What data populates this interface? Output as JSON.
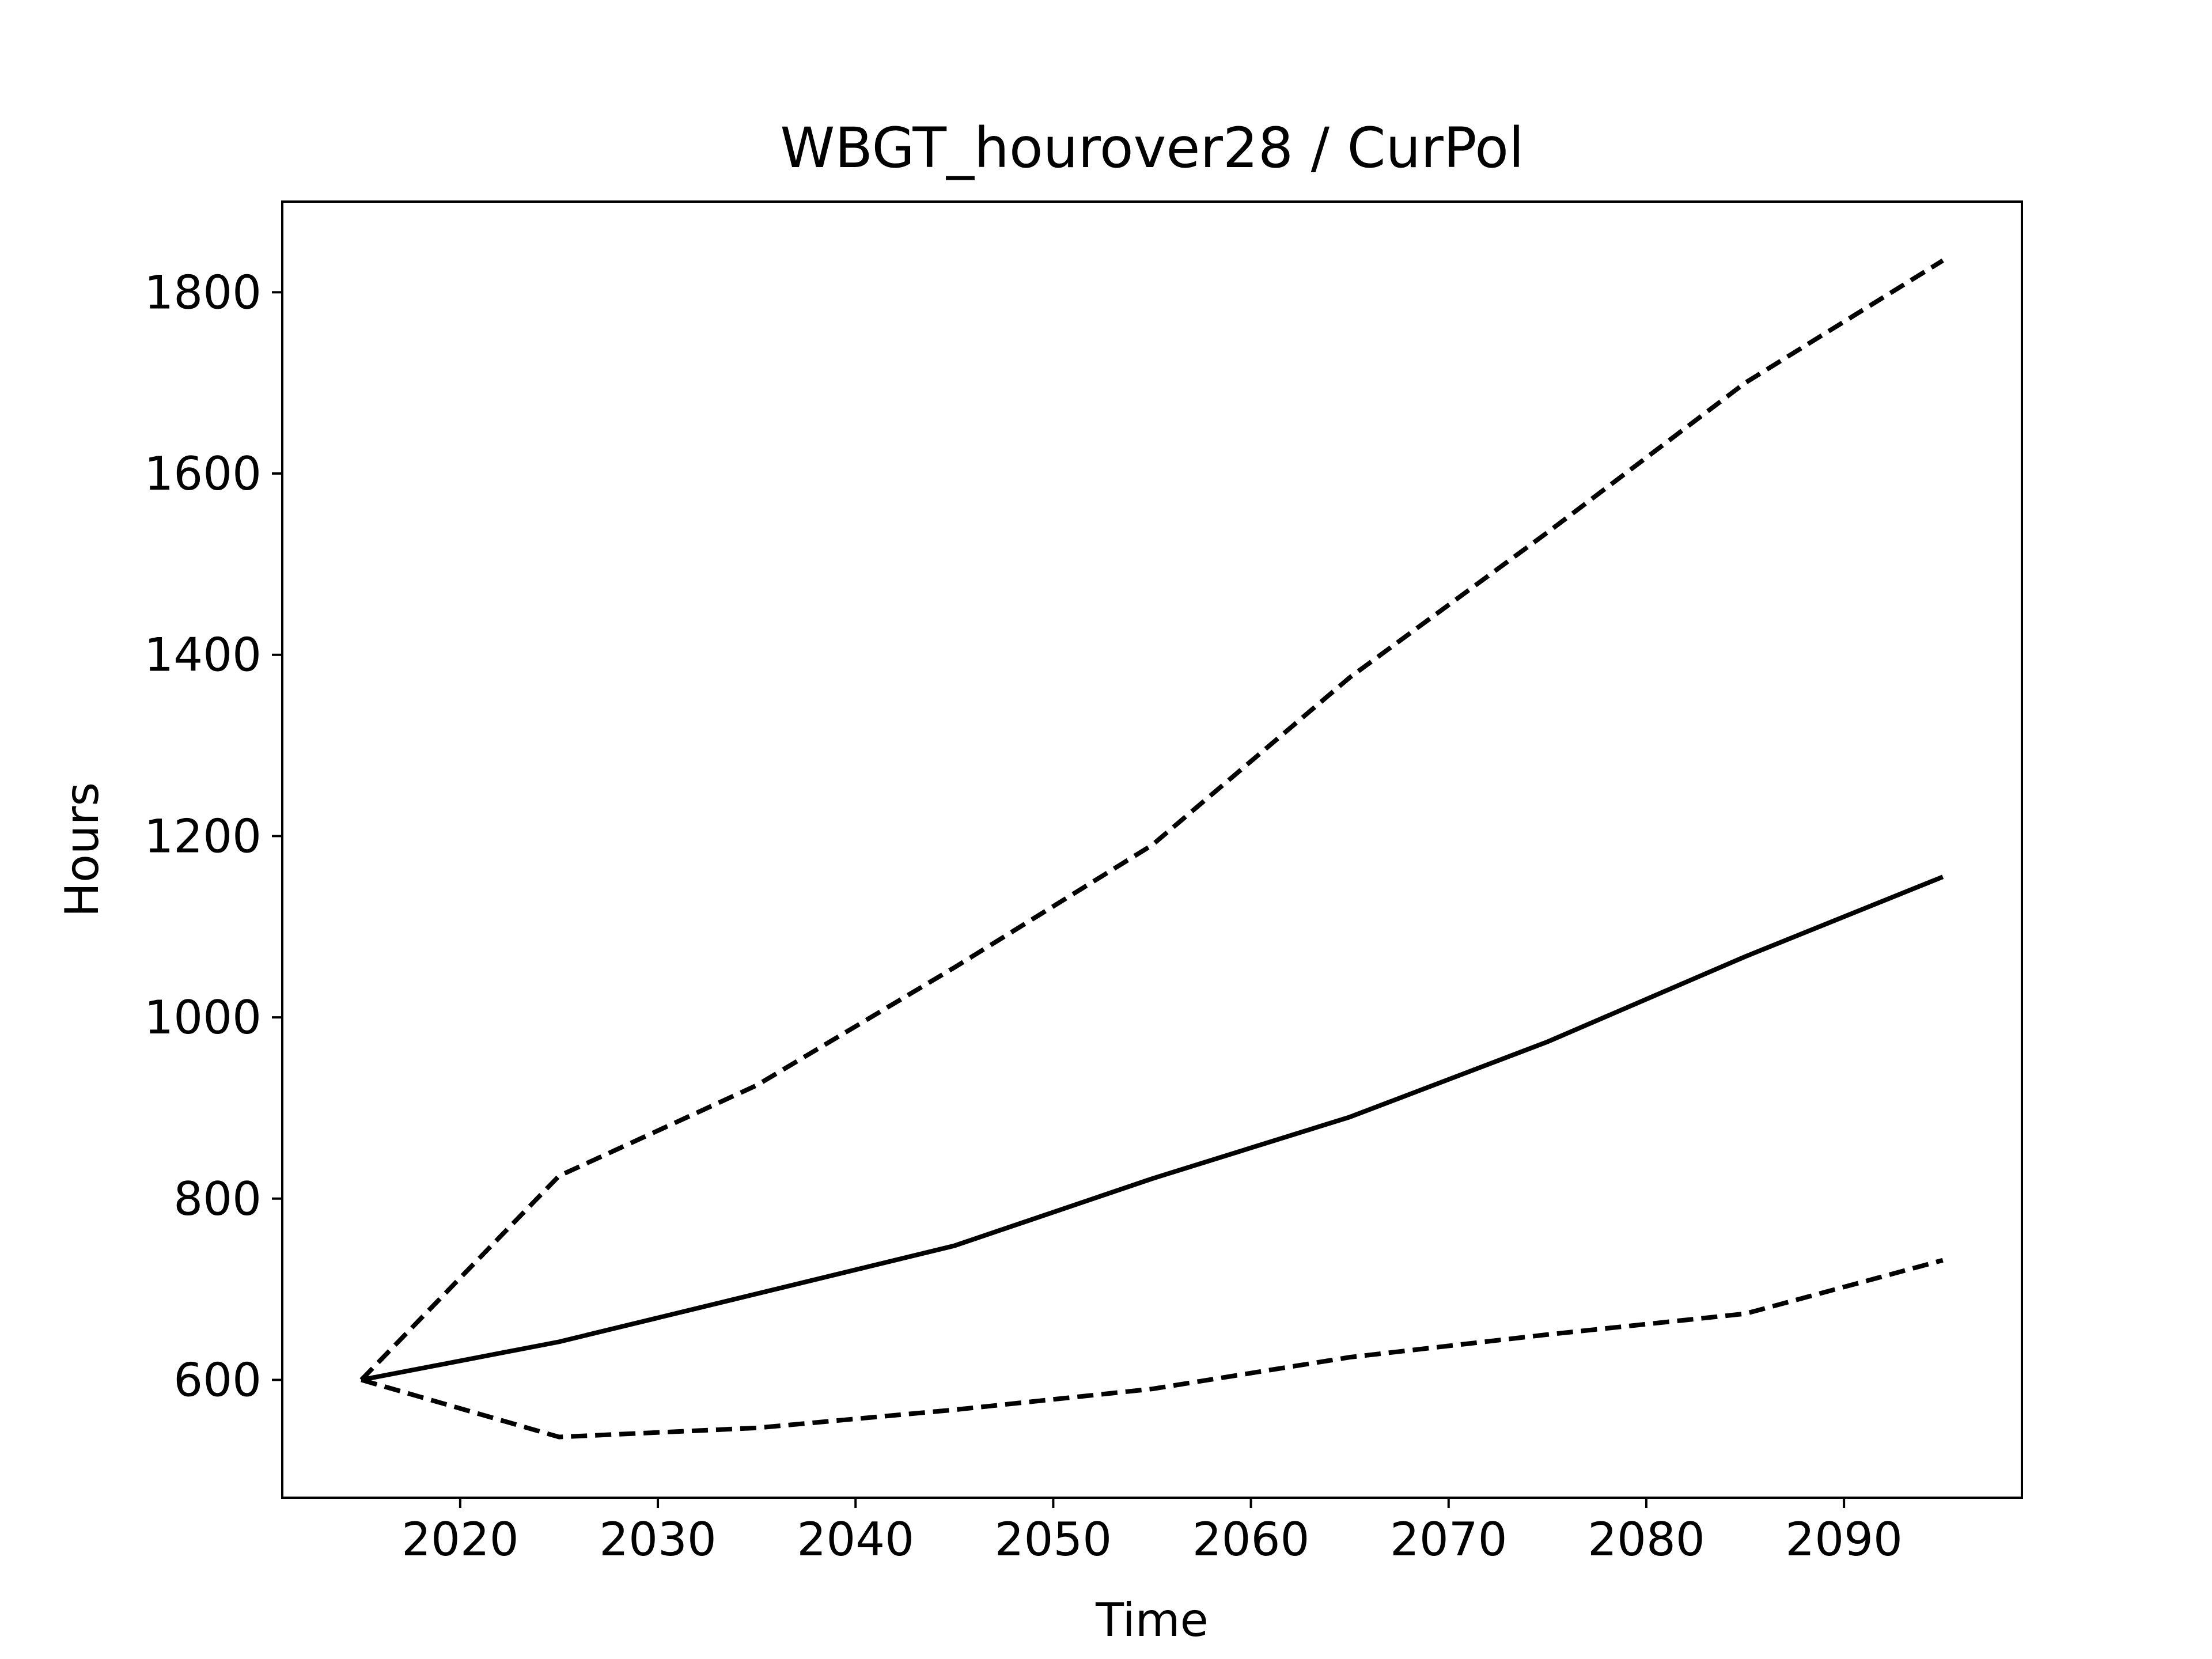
{
  "chart_data": {
    "type": "line",
    "title": "WBGT_hourover28 / CurPol",
    "xlabel": "Time",
    "ylabel": "Hours",
    "xlim": [
      2011,
      2099
    ],
    "ylim": [
      470,
      1900
    ],
    "x_ticks": [
      2020,
      2030,
      2040,
      2050,
      2060,
      2070,
      2080,
      2090
    ],
    "y_ticks": [
      600,
      800,
      1000,
      1200,
      1400,
      1600,
      1800
    ],
    "x_tick_labels": [
      "2020",
      "2030",
      "2040",
      "2050",
      "2060",
      "2070",
      "2080",
      "2090"
    ],
    "y_tick_labels": [
      "600",
      "800",
      "1000",
      "1200",
      "1400",
      "1600",
      "1800"
    ],
    "grid": false,
    "legend": false,
    "x": [
      2015,
      2025,
      2035,
      2045,
      2055,
      2065,
      2075,
      2085,
      2095
    ],
    "series": [
      {
        "style": "dashed",
        "color": "#000000",
        "values": [
          600,
          825,
          925,
          1055,
          1190,
          1375,
          1535,
          1700,
          1835
        ]
      },
      {
        "style": "solid",
        "color": "#000000",
        "values": [
          600,
          642,
          695,
          748,
          822,
          890,
          973,
          1067,
          1155
        ]
      },
      {
        "style": "dashed",
        "color": "#000000",
        "values": [
          600,
          537,
          547,
          567,
          590,
          625,
          650,
          673,
          732
        ]
      }
    ]
  }
}
